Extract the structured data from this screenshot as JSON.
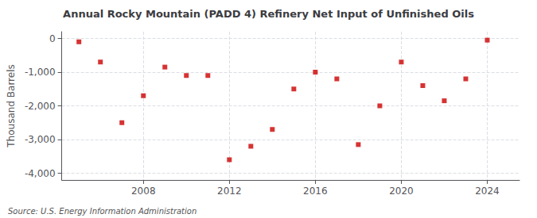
{
  "chart_data": {
    "type": "scatter",
    "title": "Annual Rocky Mountain (PADD 4) Refinery Net Input of Unfinished Oils",
    "ylabel": "Thousand Barrels",
    "annotations": [
      "Source: U.S. Energy Information Administration"
    ],
    "x": [
      2005,
      2006,
      2007,
      2008,
      2009,
      2010,
      2011,
      2012,
      2013,
      2014,
      2015,
      2016,
      2017,
      2018,
      2019,
      2020,
      2021,
      2022,
      2023,
      2024
    ],
    "values": [
      -100,
      -700,
      -2500,
      -1700,
      -850,
      -1100,
      -1100,
      -3600,
      -3200,
      -2700,
      -1500,
      -1000,
      -1200,
      -3150,
      -2000,
      -700,
      -1400,
      -1850,
      -1200,
      -50
    ],
    "color": "#cc0000",
    "marker": "square",
    "xlim": [
      2004.2,
      2025.5
    ],
    "xticks": [
      2008,
      2012,
      2016,
      2020,
      2024
    ],
    "ylim": [
      -4200,
      200
    ],
    "yticks": [
      0,
      {
        "value": -1000,
        "label": "-1,000"
      },
      {
        "value": -2000,
        "label": "-2,000"
      },
      {
        "value": -3000,
        "label": "-3,000"
      },
      {
        "value": -4000,
        "label": "-4,000"
      }
    ],
    "grid": true
  }
}
